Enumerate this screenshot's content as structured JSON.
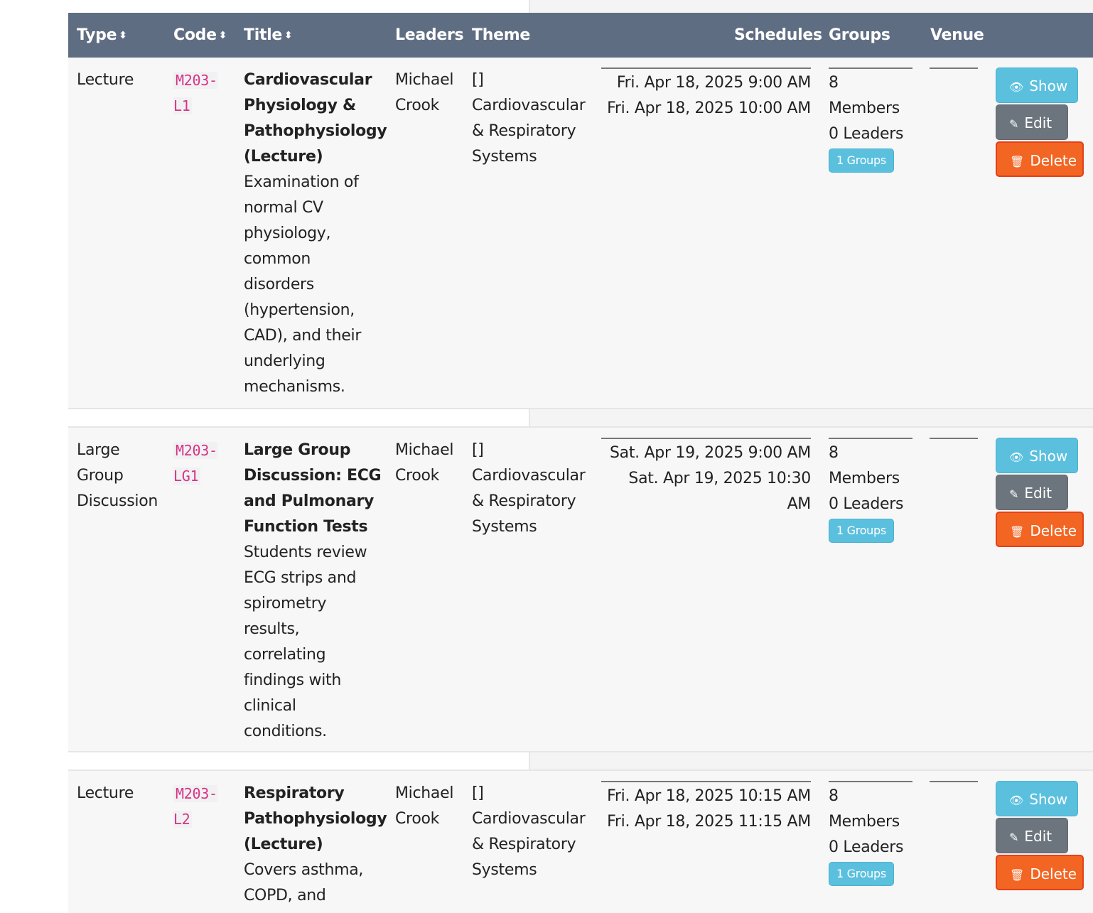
{
  "header": {
    "type": "Type",
    "code": "Code",
    "title": "Title",
    "leaders": "Leaders",
    "theme": "Theme",
    "schedules": "Schedules",
    "groups": "Groups",
    "venue": "Venue",
    "sort_icon": "⬍"
  },
  "actions": {
    "show": "Show",
    "edit": "Edit",
    "delete": "Delete",
    "show_icon": "eye-icon",
    "edit_icon": "edit-icon",
    "delete_icon": "trash-icon"
  },
  "rows": [
    {
      "type": "Lecture",
      "code": "M203-L1",
      "title": "Cardiovascular Physiology & Pathophysiology (Lecture)",
      "description": "Examination of normal CV physiology, common disorders (hypertension, CAD), and their underlying mechanisms.",
      "leaders": "Michael Crook",
      "theme_raw": "[]",
      "theme": "Cardiovascular & Respiratory Systems",
      "schedule_start": "Fri. Apr 18, 2025 9:00 AM",
      "schedule_end": "Fri. Apr 18, 2025 10:00 AM",
      "members": "8 Members",
      "group_leaders": "0 Leaders",
      "groups_badge": "1 Groups"
    },
    {
      "type": "Large Group Discussion",
      "code": "M203-LG1",
      "title": "Large Group Discussion: ECG and Pulmonary Function Tests",
      "description": "Students review ECG strips and spirometry results, correlating findings with clinical conditions.",
      "leaders": "Michael Crook",
      "theme_raw": "[]",
      "theme": "Cardiovascular & Respiratory Systems",
      "schedule_start": "Sat. Apr 19, 2025 9:00 AM",
      "schedule_end": "Sat. Apr 19, 2025 10:30 AM",
      "members": "8 Members",
      "group_leaders": "0 Leaders",
      "groups_badge": "1 Groups"
    },
    {
      "type": "Lecture",
      "code": "M203-L2",
      "title": "Respiratory Pathophysiology (Lecture)",
      "description": "Covers asthma, COPD, and",
      "leaders": "Michael Crook",
      "theme_raw": "[]",
      "theme": "Cardiovascular & Respiratory Systems",
      "schedule_start": "Fri. Apr 18, 2025 10:15 AM",
      "schedule_end": "Fri. Apr 18, 2025 11:15 AM",
      "members": "8 Members",
      "group_leaders": "0 Leaders",
      "groups_badge": "1 Groups"
    }
  ]
}
